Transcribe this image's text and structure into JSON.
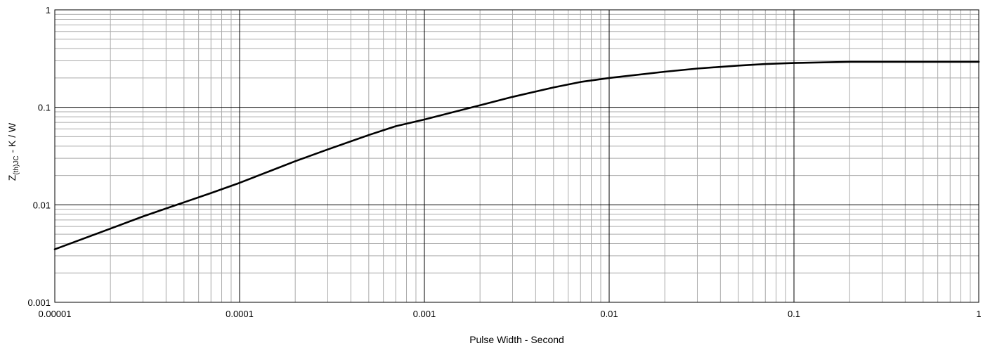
{
  "chart_data": {
    "type": "line",
    "title": "",
    "xlabel": "Pulse Width - Second",
    "ylabel": {
      "main": "Z",
      "subscript": "(th)JC",
      "suffix": " - K / W"
    },
    "xscale": "log",
    "yscale": "log",
    "xlim": [
      1e-05,
      1
    ],
    "ylim": [
      0.001,
      1
    ],
    "grid": "major and minor",
    "legend": "none",
    "x_tick_labels": [
      "0.00001",
      "0.0001",
      "0.001",
      "0.01",
      "0.1",
      "1"
    ],
    "y_tick_labels": [
      "0.001",
      "0.01",
      "0.1",
      "1"
    ],
    "colors": {
      "line": "#000000",
      "major_grid": "#000000",
      "minor_grid": "#aaaaaa"
    },
    "series": [
      {
        "values_x": [
          1e-05,
          2e-05,
          3e-05,
          5e-05,
          7e-05,
          0.0001,
          0.0002,
          0.0003,
          0.0005,
          0.0007,
          0.001,
          0.002,
          0.003,
          0.005,
          0.007,
          0.01,
          0.02,
          0.03,
          0.05,
          0.07,
          0.1,
          0.2,
          0.3,
          0.5,
          0.7,
          1
        ],
        "values_y": [
          0.0035,
          0.0057,
          0.0076,
          0.0106,
          0.0132,
          0.0168,
          0.028,
          0.037,
          0.052,
          0.064,
          0.075,
          0.105,
          0.128,
          0.16,
          0.182,
          0.2,
          0.232,
          0.25,
          0.268,
          0.278,
          0.285,
          0.293,
          0.293,
          0.293,
          0.293,
          0.293
        ]
      }
    ]
  }
}
